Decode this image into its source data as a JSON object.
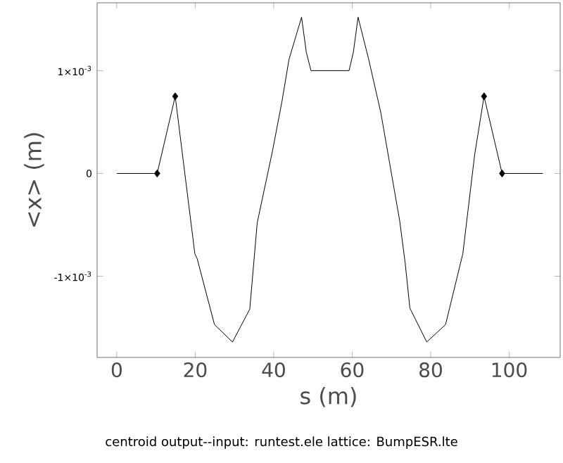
{
  "chart_data": {
    "type": "line",
    "xlabel": "s  (m)",
    "ylabel": "<x>  (m)",
    "annotations": [
      "centroid output--input: runtest.ele   lattice: BumpESR.lte"
    ],
    "xlim": [
      -5,
      113
    ],
    "xticks": [
      0,
      20,
      40,
      60,
      80,
      100
    ],
    "ylim": [
      -0.00179,
      0.00166
    ],
    "yticks": [
      {
        "value": -0.001,
        "label": "-1×10$^{-3}$"
      },
      {
        "value": 0,
        "label": "0"
      },
      {
        "value": 0.001,
        "label": "1×10$^{-3}$"
      }
    ],
    "grid": false,
    "series": [
      {
        "color": "#000000",
        "marker": "none",
        "x": [
          0,
          10.3,
          14.9,
          19.9,
          20.5,
          24.9,
          29.5,
          33.9,
          35.8,
          39.7,
          42.1,
          43.9,
          47.1,
          48.3,
          49.5,
          59.2,
          60.3,
          61.5,
          64.2,
          67.3,
          72.1,
          73.5,
          74.7,
          79.0,
          83.8,
          88.2,
          91.2,
          93.6,
          98.2,
          108.6
        ],
        "values": [
          0,
          0,
          0.00075,
          -0.00078,
          -0.00083,
          -0.00147,
          -0.00164,
          -0.00132,
          -0.00048,
          0.00022,
          0.0007,
          0.00111,
          0.00152,
          0.00118,
          0.001,
          0.001,
          0.00118,
          0.00152,
          0.00111,
          0.00059,
          -0.00046,
          -0.00087,
          -0.00131,
          -0.00164,
          -0.00147,
          -0.00078,
          0.00018,
          0.00075,
          0,
          0
        ]
      },
      {
        "type": "scatter",
        "color": "#000000",
        "marker": "diamond",
        "x": [
          10.3,
          14.9,
          93.6,
          98.2
        ],
        "values": [
          0,
          0.00075,
          0.00075,
          0
        ]
      }
    ]
  }
}
